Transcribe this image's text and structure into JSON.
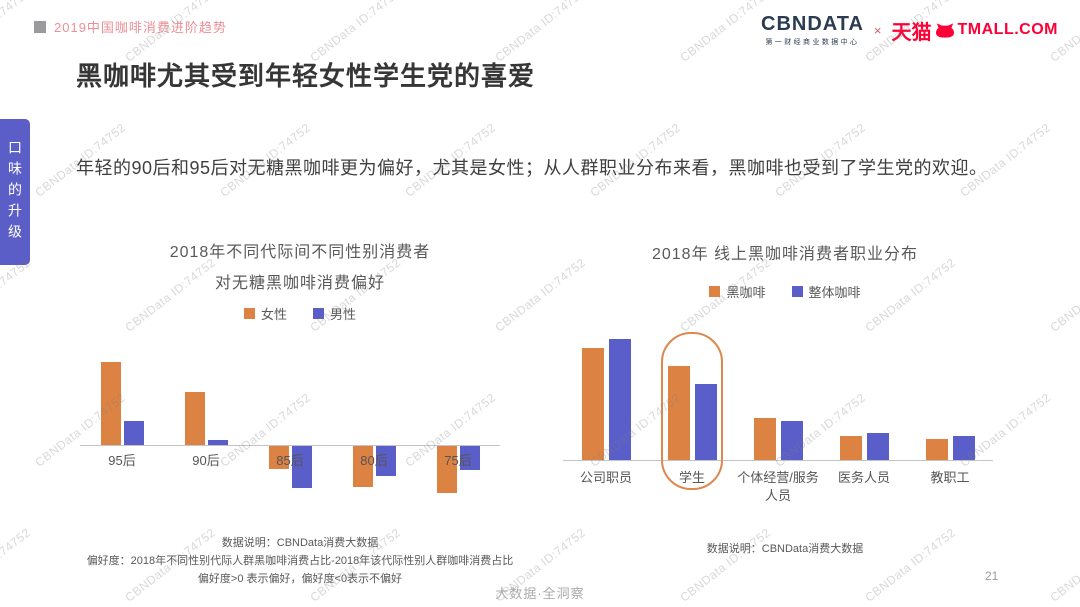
{
  "header": {
    "section_label": "2019中国咖啡消费进阶趋势",
    "cbndata_logo": "CBNDATA",
    "cbndata_logo_sub": "第一财经商业数据中心",
    "logo_separator": "×",
    "tmall_logo_cn": "天猫",
    "tmall_logo_en": "TMALL.COM"
  },
  "sidebar_tab": {
    "label": "口味的升级"
  },
  "page": {
    "title": "黑咖啡尤其受到年轻女性学生党的喜爱",
    "intro": "年轻的90后和95后对无糖黑咖啡更为偏好，尤其是女性；从人群职业分布来看，黑咖啡也受到了学生党的欢迎。",
    "page_number": "21",
    "footer_brand": "大数据·全洞察",
    "watermark": "CBNData ID:74752"
  },
  "colors": {
    "orange_series": "#DC8243",
    "indigo_series": "#5A5EC8",
    "sidebar_purple": "#5A5EC6",
    "header_pink": "#EC8F96",
    "tmall_red": "#FF0036",
    "cbndata_navy": "#2A3B52"
  },
  "chart_data": [
    {
      "type": "bar",
      "title_lines": [
        "2018年不同代际间不同性别消费者",
        "对无糖黑咖啡消费偏好"
      ],
      "categories": [
        "95后",
        "90后",
        "85后",
        "80后",
        "75后"
      ],
      "series": [
        {
          "name": "女性",
          "color": "#DC8243",
          "values": [
            0.55,
            0.35,
            -0.15,
            -0.27,
            -0.31
          ]
        },
        {
          "name": "男性",
          "color": "#5A5EC8",
          "values": [
            0.16,
            0.03,
            -0.28,
            -0.2,
            -0.16
          ]
        }
      ],
      "baseline": 0,
      "legend_position": "top",
      "grid": false,
      "notes": [
        "数据说明：CBNData消费大数据",
        "偏好度：2018年不同性别代际人群黑咖啡消费占比-2018年该代际性别人群咖啡消费占比",
        "偏好度>0 表示偏好，偏好度<0表示不偏好"
      ]
    },
    {
      "type": "bar",
      "title_lines": [
        "2018年 线上黑咖啡消费者职业分布"
      ],
      "categories": [
        "公司职员",
        "学生",
        "个体经营/服务人员",
        "医务人员",
        "教职工"
      ],
      "series": [
        {
          "name": "黑咖啡",
          "color": "#DC8243",
          "values": [
            0.37,
            0.31,
            0.14,
            0.08,
            0.07
          ]
        },
        {
          "name": "整体咖啡",
          "color": "#5A5EC8",
          "values": [
            0.4,
            0.25,
            0.13,
            0.09,
            0.08
          ]
        }
      ],
      "highlight_category": "学生",
      "legend_position": "top",
      "grid": false,
      "notes": [
        "数据说明：CBNData消费大数据"
      ]
    }
  ]
}
